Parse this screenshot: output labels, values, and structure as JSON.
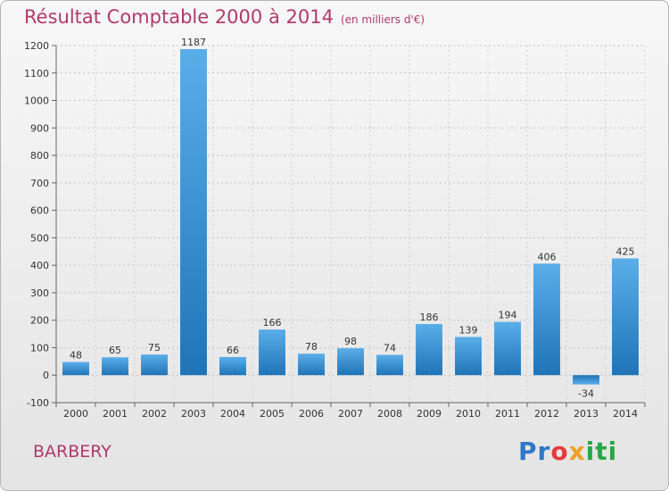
{
  "title_main": "Résultat Comptable 2000 à 2014",
  "title_sub": "(en milliers d'€)",
  "city": "BARBERY",
  "logo": {
    "p1": "Pr",
    "p2": "o",
    "p3": "x",
    "p4": "iti"
  },
  "colors": {
    "bar_top": "#5aaee8",
    "bar_bottom": "#1f74b8",
    "title": "#b03a6a"
  },
  "chart_data": {
    "type": "bar",
    "title": "Résultat Comptable 2000 à 2014",
    "xlabel": "",
    "ylabel": "",
    "categories": [
      "2000",
      "2001",
      "2002",
      "2003",
      "2004",
      "2005",
      "2006",
      "2007",
      "2008",
      "2009",
      "2010",
      "2011",
      "2012",
      "2013",
      "2014"
    ],
    "values": [
      48,
      65,
      75,
      1187,
      66,
      166,
      78,
      98,
      74,
      186,
      139,
      194,
      406,
      -34,
      425
    ],
    "ylim": [
      -100,
      1200
    ],
    "yticks": [
      -100,
      0,
      100,
      200,
      300,
      400,
      500,
      600,
      700,
      800,
      900,
      1000,
      1100,
      1200
    ],
    "grid": true
  }
}
